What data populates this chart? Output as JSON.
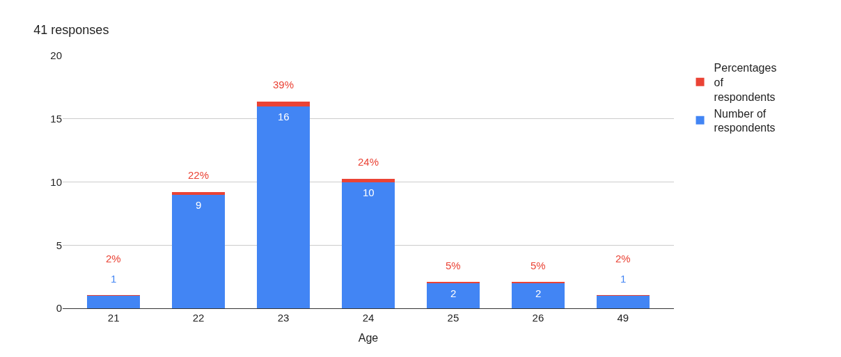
{
  "chart_data": {
    "type": "bar",
    "title": "41 responses",
    "xlabel": "Age",
    "stacked": true,
    "categories": [
      "21",
      "22",
      "23",
      "24",
      "25",
      "26",
      "49"
    ],
    "series": [
      {
        "name": "Number of respondents",
        "color": "#4285f4",
        "values": [
          1,
          9,
          16,
          10,
          2,
          2,
          1
        ],
        "data_labels": true
      },
      {
        "name": "Percentages of respondents",
        "color": "#ea4335",
        "values": [
          0.02,
          0.22,
          0.39,
          0.24,
          0.05,
          0.05,
          0.02
        ],
        "value_labels": [
          "2%",
          "22%",
          "39%",
          "24%",
          "5%",
          "5%",
          "2%"
        ]
      }
    ],
    "ylim": [
      0,
      20
    ],
    "yticks": [
      0,
      5,
      10,
      15,
      20
    ],
    "grid": "y",
    "legend": "top right"
  }
}
